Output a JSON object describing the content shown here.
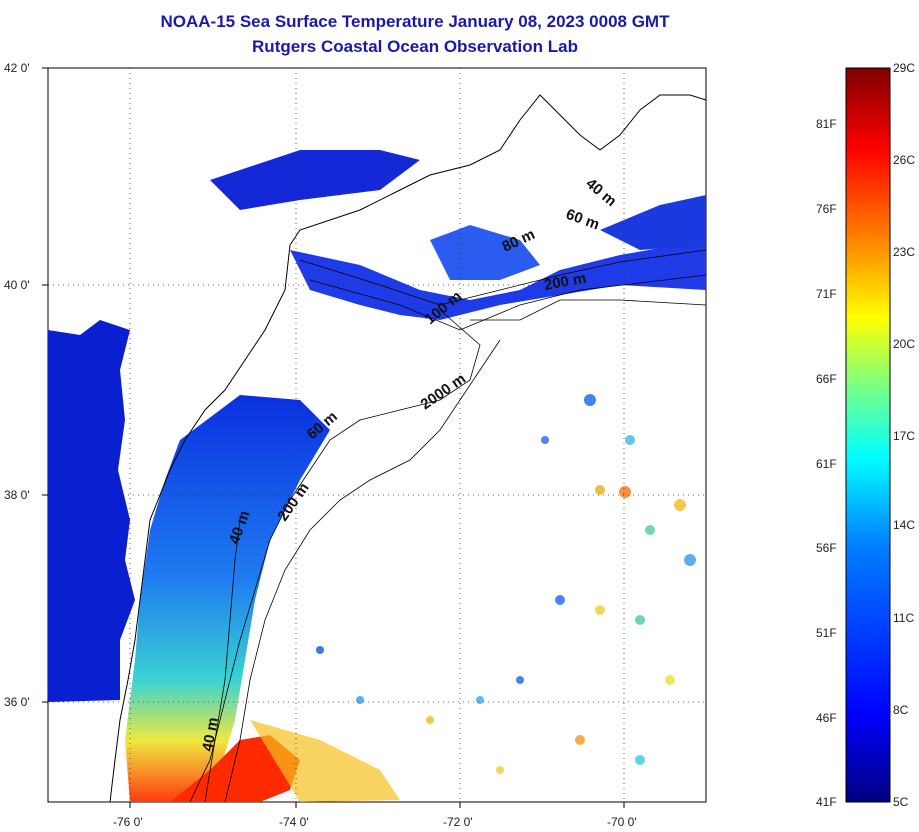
{
  "title_line1": "NOAA-15 Sea Surface Temperature January 08, 2023 0008 GMT",
  "title_line2": "Rutgers Coastal Ocean Observation Lab",
  "lat_labels": [
    "42 0'",
    "40 0'",
    "38 0'",
    "36 0'"
  ],
  "lon_labels": [
    "-76 0'",
    "-74 0'",
    "-72 0'",
    "-70 0'"
  ],
  "depth_labels": [
    "40 m",
    "60 m",
    "80 m",
    "200 m",
    "100 m",
    "2000 m",
    "60 m",
    "200 m",
    "40 m",
    "40 m"
  ],
  "colorbar": {
    "fahrenheit": [
      "81F",
      "76F",
      "71F",
      "66F",
      "61F",
      "56F",
      "51F",
      "46F",
      "41F"
    ],
    "celsius": [
      "29C",
      "26C",
      "23C",
      "20C",
      "17C",
      "14C",
      "11C",
      "8C",
      "5C"
    ],
    "colors": [
      "#00007f",
      "#0000ff",
      "#007fff",
      "#00ffff",
      "#7fff7f",
      "#ffff00",
      "#ff7f00",
      "#ff0000",
      "#7f0000"
    ]
  }
}
